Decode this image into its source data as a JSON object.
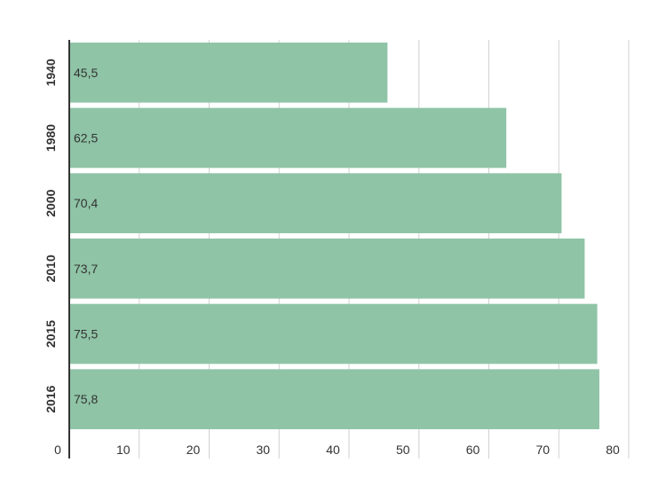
{
  "chart_data": {
    "type": "bar",
    "orientation": "horizontal",
    "categories": [
      "1940",
      "1980",
      "2000",
      "2010",
      "2015",
      "2016"
    ],
    "values": [
      45.5,
      62.5,
      70.4,
      73.7,
      75.5,
      75.8
    ],
    "data_labels": [
      "45,5",
      "62,5",
      "70,4",
      "73,7",
      "75,5",
      "75,8"
    ],
    "xlim": [
      0,
      80
    ],
    "x_ticks": [
      0,
      10,
      20,
      30,
      40,
      50,
      60,
      70,
      80
    ],
    "x_tick_labels": [
      "0",
      "10",
      "20",
      "30",
      "40",
      "50",
      "60",
      "70",
      "80"
    ],
    "grid": "vertical",
    "title": "",
    "xlabel": "",
    "ylabel": "",
    "colors": {
      "bar": "#8fc4a6",
      "grid": "#d0d0d0",
      "axis": "#333333",
      "text": "#333333"
    }
  }
}
